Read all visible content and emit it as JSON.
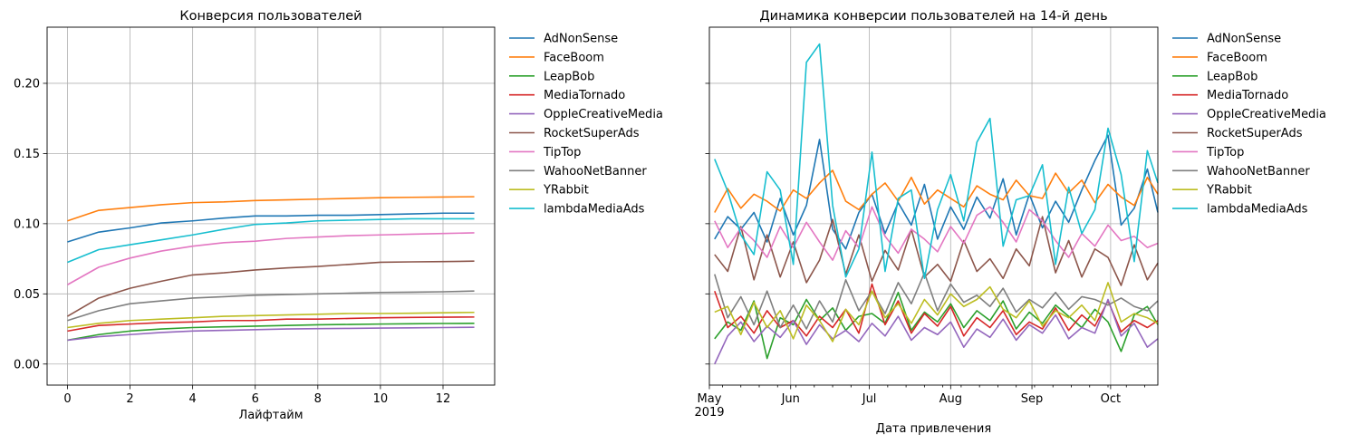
{
  "chart_data": [
    {
      "type": "line",
      "title": "Конверсия пользователей",
      "xlabel": "Лайфтайм",
      "ylabel": "",
      "xlim": [
        -0.65,
        13.65
      ],
      "ylim": [
        -0.015,
        0.24
      ],
      "x_ticks": [
        0,
        2,
        4,
        6,
        8,
        10,
        12
      ],
      "x_tick_labels": [
        "0",
        "2",
        "4",
        "6",
        "8",
        "10",
        "12"
      ],
      "y_ticks": [
        0.0,
        0.05,
        0.1,
        0.15,
        0.2
      ],
      "y_tick_labels": [
        "0.00",
        "0.05",
        "0.10",
        "0.15",
        "0.20"
      ],
      "grid": true,
      "legend_position": "outside-right",
      "x": [
        0,
        1,
        2,
        3,
        4,
        5,
        6,
        7,
        8,
        9,
        10,
        11,
        12,
        13
      ],
      "series": [
        {
          "name": "AdNonSense",
          "color": "#1f77b4",
          "values": [
            0.087,
            0.094,
            0.097,
            0.1005,
            0.102,
            0.104,
            0.1055,
            0.1055,
            0.106,
            0.106,
            0.1065,
            0.107,
            0.1075,
            0.1075
          ]
        },
        {
          "name": "FaceBoom",
          "color": "#ff7f0e",
          "values": [
            0.102,
            0.1095,
            0.1115,
            0.1135,
            0.115,
            0.1155,
            0.1165,
            0.117,
            0.1175,
            0.118,
            0.1185,
            0.1188,
            0.119,
            0.1192
          ]
        },
        {
          "name": "LeapBob",
          "color": "#2ca02c",
          "values": [
            0.017,
            0.021,
            0.0235,
            0.025,
            0.026,
            0.0265,
            0.027,
            0.0275,
            0.028,
            0.0282,
            0.0285,
            0.0287,
            0.0289,
            0.029
          ]
        },
        {
          "name": "MediaTornado",
          "color": "#d62728",
          "values": [
            0.0235,
            0.0275,
            0.0285,
            0.0295,
            0.03,
            0.031,
            0.031,
            0.032,
            0.032,
            0.0325,
            0.033,
            0.0332,
            0.0334,
            0.0335
          ]
        },
        {
          "name": "OppleCreativeMedia",
          "color": "#9467bd",
          "values": [
            0.017,
            0.0195,
            0.021,
            0.0225,
            0.0235,
            0.024,
            0.0245,
            0.025,
            0.0252,
            0.0254,
            0.0256,
            0.0258,
            0.026,
            0.0262
          ]
        },
        {
          "name": "RocketSuperAds",
          "color": "#8c564b",
          "values": [
            0.034,
            0.047,
            0.054,
            0.059,
            0.0635,
            0.065,
            0.067,
            0.0685,
            0.0695,
            0.071,
            0.0725,
            0.0728,
            0.073,
            0.0733
          ]
        },
        {
          "name": "TipTop",
          "color": "#e377c2",
          "values": [
            0.0565,
            0.069,
            0.0755,
            0.0805,
            0.084,
            0.0865,
            0.0875,
            0.0895,
            0.0905,
            0.0915,
            0.092,
            0.0925,
            0.093,
            0.0935
          ]
        },
        {
          "name": "WahooNetBanner",
          "color": "#7f7f7f",
          "values": [
            0.031,
            0.038,
            0.043,
            0.045,
            0.047,
            0.048,
            0.049,
            0.0495,
            0.05,
            0.0505,
            0.051,
            0.0512,
            0.0515,
            0.052
          ]
        },
        {
          "name": "YRabbit",
          "color": "#bcbd22",
          "values": [
            0.026,
            0.029,
            0.031,
            0.032,
            0.033,
            0.034,
            0.0345,
            0.035,
            0.0355,
            0.036,
            0.036,
            0.0362,
            0.0365,
            0.0368
          ]
        },
        {
          "name": "lambdaMediaAds",
          "color": "#17becf",
          "values": [
            0.0725,
            0.0815,
            0.085,
            0.0885,
            0.092,
            0.096,
            0.0995,
            0.1005,
            0.102,
            0.1025,
            0.103,
            0.1035,
            0.1035,
            0.1035
          ]
        }
      ]
    },
    {
      "type": "line",
      "title": "Динамика конверсии пользователей на 14-й день",
      "xlabel": "Дата привлечения",
      "ylabel": "",
      "x_type": "date",
      "xlim": [
        "2019-05-01",
        "2019-10-19"
      ],
      "ylim": [
        -0.015,
        0.24
      ],
      "x_ticks": [
        "2019-05-01",
        "2019-06-01",
        "2019-07-01",
        "2019-08-01",
        "2019-09-01",
        "2019-10-01"
      ],
      "x_tick_labels": [
        "May\n2019",
        "Jun",
        "Jul",
        "Aug",
        "Sep",
        "Oct"
      ],
      "y_tick_labels_visible": false,
      "grid": true,
      "legend_position": "outside-right",
      "x": [
        "2019-05-03",
        "2019-05-08",
        "2019-05-13",
        "2019-05-18",
        "2019-05-23",
        "2019-05-28",
        "2019-06-02",
        "2019-06-07",
        "2019-06-12",
        "2019-06-17",
        "2019-06-22",
        "2019-06-27",
        "2019-07-02",
        "2019-07-07",
        "2019-07-12",
        "2019-07-17",
        "2019-07-22",
        "2019-07-27",
        "2019-08-01",
        "2019-08-06",
        "2019-08-11",
        "2019-08-16",
        "2019-08-21",
        "2019-08-26",
        "2019-08-31",
        "2019-09-05",
        "2019-09-10",
        "2019-09-15",
        "2019-09-20",
        "2019-09-25",
        "2019-09-30",
        "2019-10-05",
        "2019-10-10",
        "2019-10-15",
        "2019-10-19"
      ],
      "series": [
        {
          "name": "AdNonSense",
          "color": "#1f77b4",
          "values": [
            0.089,
            0.105,
            0.096,
            0.108,
            0.087,
            0.118,
            0.092,
            0.113,
            0.16,
            0.096,
            0.082,
            0.108,
            0.121,
            0.093,
            0.115,
            0.099,
            0.128,
            0.089,
            0.112,
            0.096,
            0.119,
            0.104,
            0.132,
            0.092,
            0.121,
            0.097,
            0.116,
            0.101,
            0.124,
            0.145,
            0.163,
            0.099,
            0.111,
            0.139,
            0.108
          ]
        },
        {
          "name": "FaceBoom",
          "color": "#ff7f0e",
          "values": [
            0.108,
            0.125,
            0.111,
            0.121,
            0.116,
            0.109,
            0.124,
            0.118,
            0.129,
            0.138,
            0.116,
            0.11,
            0.121,
            0.129,
            0.116,
            0.133,
            0.114,
            0.124,
            0.118,
            0.112,
            0.127,
            0.121,
            0.117,
            0.131,
            0.12,
            0.118,
            0.136,
            0.122,
            0.131,
            0.115,
            0.128,
            0.119,
            0.113,
            0.133,
            0.121
          ]
        },
        {
          "name": "LeapBob",
          "color": "#2ca02c",
          "values": [
            0.018,
            0.03,
            0.024,
            0.045,
            0.004,
            0.033,
            0.028,
            0.046,
            0.031,
            0.04,
            0.024,
            0.034,
            0.036,
            0.029,
            0.051,
            0.024,
            0.037,
            0.03,
            0.043,
            0.026,
            0.038,
            0.031,
            0.045,
            0.025,
            0.037,
            0.029,
            0.042,
            0.034,
            0.026,
            0.039,
            0.03,
            0.009,
            0.035,
            0.041,
            0.028
          ]
        },
        {
          "name": "MediaTornado",
          "color": "#d62728",
          "values": [
            0.052,
            0.026,
            0.034,
            0.022,
            0.038,
            0.026,
            0.031,
            0.02,
            0.034,
            0.026,
            0.039,
            0.022,
            0.057,
            0.028,
            0.045,
            0.022,
            0.036,
            0.027,
            0.041,
            0.02,
            0.033,
            0.026,
            0.038,
            0.021,
            0.03,
            0.025,
            0.04,
            0.024,
            0.035,
            0.027,
            0.045,
            0.023,
            0.031,
            0.026,
            0.031
          ]
        },
        {
          "name": "OppleCreativeMedia",
          "color": "#9467bd",
          "values": [
            0.0,
            0.02,
            0.03,
            0.016,
            0.027,
            0.019,
            0.031,
            0.014,
            0.028,
            0.018,
            0.024,
            0.016,
            0.029,
            0.02,
            0.034,
            0.017,
            0.026,
            0.021,
            0.03,
            0.012,
            0.025,
            0.019,
            0.032,
            0.017,
            0.028,
            0.022,
            0.035,
            0.018,
            0.026,
            0.022,
            0.046,
            0.02,
            0.029,
            0.012,
            0.018
          ]
        },
        {
          "name": "RocketSuperAds",
          "color": "#8c564b",
          "values": [
            0.078,
            0.066,
            0.098,
            0.06,
            0.092,
            0.062,
            0.087,
            0.058,
            0.074,
            0.103,
            0.064,
            0.092,
            0.059,
            0.081,
            0.067,
            0.096,
            0.062,
            0.071,
            0.059,
            0.088,
            0.066,
            0.075,
            0.061,
            0.082,
            0.07,
            0.105,
            0.065,
            0.088,
            0.062,
            0.082,
            0.076,
            0.056,
            0.085,
            0.06,
            0.072
          ]
        },
        {
          "name": "TipTop",
          "color": "#e377c2",
          "values": [
            0.102,
            0.083,
            0.097,
            0.088,
            0.076,
            0.098,
            0.083,
            0.101,
            0.087,
            0.074,
            0.095,
            0.083,
            0.112,
            0.091,
            0.079,
            0.096,
            0.089,
            0.08,
            0.098,
            0.086,
            0.106,
            0.112,
            0.101,
            0.087,
            0.11,
            0.102,
            0.088,
            0.076,
            0.093,
            0.084,
            0.099,
            0.088,
            0.091,
            0.083,
            0.086
          ]
        },
        {
          "name": "WahooNetBanner",
          "color": "#7f7f7f",
          "values": [
            0.064,
            0.033,
            0.048,
            0.028,
            0.052,
            0.026,
            0.042,
            0.025,
            0.045,
            0.03,
            0.06,
            0.038,
            0.052,
            0.036,
            0.058,
            0.043,
            0.065,
            0.038,
            0.057,
            0.044,
            0.049,
            0.041,
            0.054,
            0.037,
            0.046,
            0.04,
            0.051,
            0.039,
            0.048,
            0.046,
            0.042,
            0.047,
            0.041,
            0.038,
            0.045
          ]
        },
        {
          "name": "YRabbit",
          "color": "#bcbd22",
          "values": [
            0.037,
            0.041,
            0.021,
            0.044,
            0.026,
            0.038,
            0.018,
            0.042,
            0.031,
            0.016,
            0.039,
            0.028,
            0.052,
            0.033,
            0.043,
            0.029,
            0.046,
            0.035,
            0.05,
            0.041,
            0.046,
            0.055,
            0.039,
            0.033,
            0.045,
            0.027,
            0.038,
            0.033,
            0.042,
            0.031,
            0.058,
            0.03,
            0.036,
            0.033,
            0.029
          ]
        },
        {
          "name": "lambdaMediaAds",
          "color": "#17becf",
          "values": [
            0.146,
            0.123,
            0.092,
            0.078,
            0.137,
            0.124,
            0.071,
            0.215,
            0.228,
            0.113,
            0.062,
            0.082,
            0.151,
            0.066,
            0.118,
            0.124,
            0.061,
            0.11,
            0.135,
            0.102,
            0.158,
            0.175,
            0.084,
            0.117,
            0.12,
            0.142,
            0.071,
            0.126,
            0.093,
            0.11,
            0.168,
            0.135,
            0.073,
            0.152,
            0.129
          ]
        }
      ]
    }
  ]
}
